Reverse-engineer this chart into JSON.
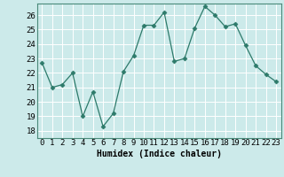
{
  "x": [
    0,
    1,
    2,
    3,
    4,
    5,
    6,
    7,
    8,
    9,
    10,
    11,
    12,
    13,
    14,
    15,
    16,
    17,
    18,
    19,
    20,
    21,
    22,
    23
  ],
  "y": [
    22.7,
    21.0,
    21.2,
    22.0,
    19.0,
    20.7,
    18.3,
    19.2,
    22.1,
    23.2,
    25.3,
    25.3,
    26.2,
    22.8,
    23.0,
    25.1,
    26.6,
    26.0,
    25.2,
    25.4,
    23.9,
    22.5,
    21.9,
    21.4
  ],
  "line_color": "#2d7a6a",
  "marker": "D",
  "marker_size": 2.5,
  "bg_color": "#cceaea",
  "grid_color": "#ffffff",
  "xlabel": "Humidex (Indice chaleur)",
  "ylim": [
    17.5,
    26.8
  ],
  "yticks": [
    18,
    19,
    20,
    21,
    22,
    23,
    24,
    25,
    26
  ],
  "xticks": [
    0,
    1,
    2,
    3,
    4,
    5,
    6,
    7,
    8,
    9,
    10,
    11,
    12,
    13,
    14,
    15,
    16,
    17,
    18,
    19,
    20,
    21,
    22,
    23
  ],
  "label_fontsize": 7,
  "tick_fontsize": 6.5
}
